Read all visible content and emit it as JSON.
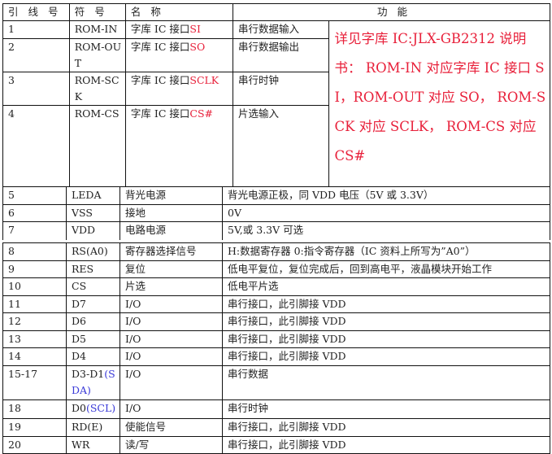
{
  "header": {
    "pin": "引 线 号",
    "symbol": "符 号",
    "name": "名 称",
    "function": "功 能"
  },
  "colors": {
    "red": "#e8203a",
    "blue": "#3a3ad8"
  },
  "rom_rows": [
    {
      "pin": "1",
      "symbol": "ROM-IN",
      "name": "字库 IC 接口",
      "name_hl": "SI",
      "function": "串行数据输入"
    },
    {
      "pin": "2",
      "symbol": "ROM-OUT",
      "name": "字库 IC 接口",
      "name_hl": "SO",
      "function": "串行数据输出"
    },
    {
      "pin": "3",
      "symbol": "ROM-SCK",
      "name": "字库 IC 接口",
      "name_hl": "SCLK",
      "function": "串行时钟"
    },
    {
      "pin": "4",
      "symbol": "ROM-CS",
      "name": "字库 IC 接口",
      "name_hl": "CS#",
      "function": "片选输入"
    }
  ],
  "rom_note": "详见字库 IC:JLX-GB2312 说明书： ROM-IN 对应字库 IC 接口 SI，ROM-OUT 对应 SO， ROM-SCK 对应 SCLK， ROM-CS 对应 CS#",
  "power_rows": [
    {
      "pin": "5",
      "symbol": "LEDA",
      "name": "背光电源",
      "function": "背光电源正极，同 VDD 电压（5V 或 3.3V）"
    },
    {
      "pin": "6",
      "symbol": "VSS",
      "name": "接地",
      "function": "0V"
    },
    {
      "pin": "7",
      "symbol": "VDD",
      "name": "电路电源",
      "function": "5V,或 3.3V 可选"
    }
  ],
  "lcd_rows": [
    {
      "pin": "8",
      "symbol": "RS(A0)",
      "symbol_hl": "",
      "name": "寄存器选择信号",
      "function": "H:数据寄存器 0:指令寄存器（IC 资料上所写为”A0”）"
    },
    {
      "pin": "9",
      "symbol": "RES",
      "symbol_hl": "",
      "name": "复位",
      "function": "低电平复位，复位完成后，回到高电平，液晶模块开始工作"
    },
    {
      "pin": "10",
      "symbol": "CS",
      "symbol_hl": "",
      "name": "片选",
      "function": "低电平片选"
    },
    {
      "pin": "11",
      "symbol": "D7",
      "symbol_hl": "",
      "name": "I/O",
      "function": "串行接口，此引脚接 VDD"
    },
    {
      "pin": "12",
      "symbol": "D6",
      "symbol_hl": "",
      "name": "I/O",
      "function": "串行接口，此引脚接 VDD"
    },
    {
      "pin": "13",
      "symbol": "D5",
      "symbol_hl": "",
      "name": "I/O",
      "function": "串行接口，此引脚接 VDD"
    },
    {
      "pin": "14",
      "symbol": "D4",
      "symbol_hl": "",
      "name": "I/O",
      "function": "串行接口，此引脚接 VDD"
    },
    {
      "pin": "15-17",
      "symbol": "D3-D1",
      "symbol_hl": "(SDA)",
      "name": "I/O",
      "function": "串行数据"
    },
    {
      "pin": "18",
      "symbol": "D0",
      "symbol_hl": "(SCL)",
      "name": "I/O",
      "function": "串行时钟"
    },
    {
      "pin": "19",
      "symbol": "RD(E)",
      "symbol_hl": "",
      "name": "使能信号",
      "function": "串行接口，此引脚接 VDD"
    },
    {
      "pin": "20",
      "symbol": "WR",
      "symbol_hl": "",
      "name": "读/写",
      "function": "串行接口，此引脚接 VDD"
    }
  ]
}
